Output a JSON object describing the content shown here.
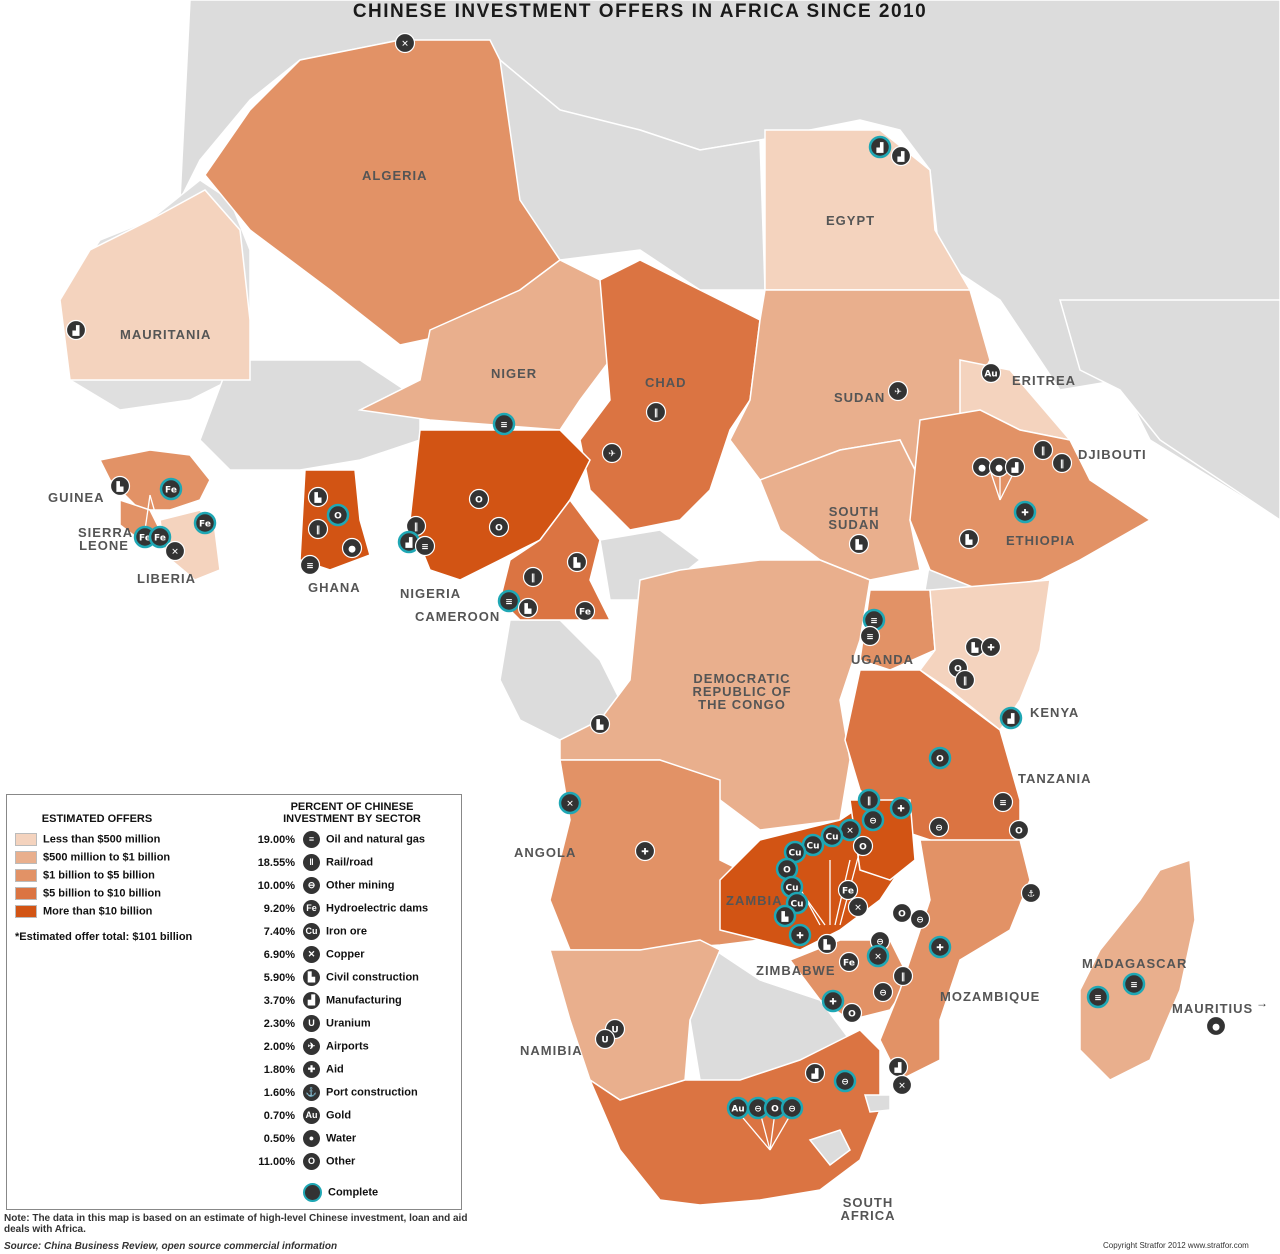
{
  "title": "CHINESE INVESTMENT OFFERS IN AFRICA SINCE 2010",
  "colors": {
    "land_other": "#dcdcdc",
    "sea": "#ffffff",
    "cat1": "#f4d3be",
    "cat2": "#e9af8d",
    "cat3": "#e29266",
    "cat4": "#db7442",
    "cat5": "#d25414",
    "marker": "#333333",
    "complete_ring": "#1fa7b4"
  },
  "countries": {
    "algeria": "ALGERIA",
    "egypt": "EGYPT",
    "mauritania": "MAURITANIA",
    "niger": "NIGER",
    "chad": "CHAD",
    "sudan": "SUDAN",
    "eritrea": "ERITREA",
    "djibouti": "DJIBOUTI",
    "guinea": "GUINEA",
    "sierra_leone": "SIERRA LEONE",
    "liberia": "LIBERIA",
    "ghana": "GHANA",
    "nigeria": "NIGERIA",
    "cameroon": "CAMEROON",
    "south_sudan": "SOUTH SUDAN",
    "ethiopia": "ETHIOPIA",
    "uganda": "UGANDA",
    "kenya": "KENYA",
    "drc": "DEMOCRATIC REPUBLIC OF THE CONGO",
    "tanzania": "TANZANIA",
    "angola": "ANGOLA",
    "zambia": "ZAMBIA",
    "zimbabwe": "ZIMBABWE",
    "mozambique": "MOZAMBIQUE",
    "madagascar": "MADAGASCAR",
    "mauritius": "MAURITIUS",
    "namibia": "NAMIBIA",
    "south_africa": "SOUTH AFRICA"
  },
  "legend": {
    "offers_title": "ESTIMATED OFFERS",
    "offers": [
      {
        "label": "Less than $500 million",
        "color": "#f4d3be"
      },
      {
        "label": "$500 million to $1 billion",
        "color": "#e9af8d"
      },
      {
        "label": "$1 billion to $5 billion",
        "color": "#e29266"
      },
      {
        "label": "$5 billion to $10 billion",
        "color": "#db7442"
      },
      {
        "label": "More than $10 billion",
        "color": "#d25414"
      }
    ],
    "total": "*Estimated offer total: $101 billion",
    "sector_title": "PERCENT OF CHINESE INVESTMENT BY SECTOR",
    "sectors": [
      {
        "pct": "19.00%",
        "name": "Oil and natural gas",
        "icon": "oil-barrel-icon",
        "glyph": "≡"
      },
      {
        "pct": "18.55%",
        "name": "Rail/road",
        "icon": "rail-road-icon",
        "glyph": "‖"
      },
      {
        "pct": "10.00%",
        "name": "Other mining",
        "icon": "mine-cart-icon",
        "glyph": "⊖"
      },
      {
        "pct": "9.20%",
        "name": "Hydroelectric dams",
        "icon": "fe-icon",
        "glyph": "Fe"
      },
      {
        "pct": "7.40%",
        "name": "Iron ore",
        "icon": "cu-icon",
        "glyph": "Cu"
      },
      {
        "pct": "6.90%",
        "name": "Copper",
        "icon": "tools-icon",
        "glyph": "✕"
      },
      {
        "pct": "5.90%",
        "name": "Civil construction",
        "icon": "construction-icon",
        "glyph": "▙"
      },
      {
        "pct": "3.70%",
        "name": "Manufacturing",
        "icon": "factory-icon",
        "glyph": "▟"
      },
      {
        "pct": "2.30%",
        "name": "Uranium",
        "icon": "uranium-icon",
        "glyph": "U"
      },
      {
        "pct": "2.00%",
        "name": "Airports",
        "icon": "airplane-icon",
        "glyph": "✈"
      },
      {
        "pct": "1.80%",
        "name": "Aid",
        "icon": "aid-cross-icon",
        "glyph": "✚"
      },
      {
        "pct": "1.60%",
        "name": "Port construction",
        "icon": "anchor-icon",
        "glyph": "⚓"
      },
      {
        "pct": "0.70%",
        "name": "Gold",
        "icon": "gold-icon",
        "glyph": "Au"
      },
      {
        "pct": "0.50%",
        "name": "Water",
        "icon": "water-drop-icon",
        "glyph": "●"
      },
      {
        "pct": "11.00%",
        "name": "Other",
        "icon": "other-icon",
        "glyph": "O"
      }
    ],
    "complete_label": "Complete"
  },
  "note": "Note: The data in this map is based on an estimate of high-level Chinese investment, loan and aid deals with Africa.",
  "source": "Source: China Business Review, open source commercial information",
  "copyright": "Copyright Stratfor 2012   www.stratfor.com"
}
